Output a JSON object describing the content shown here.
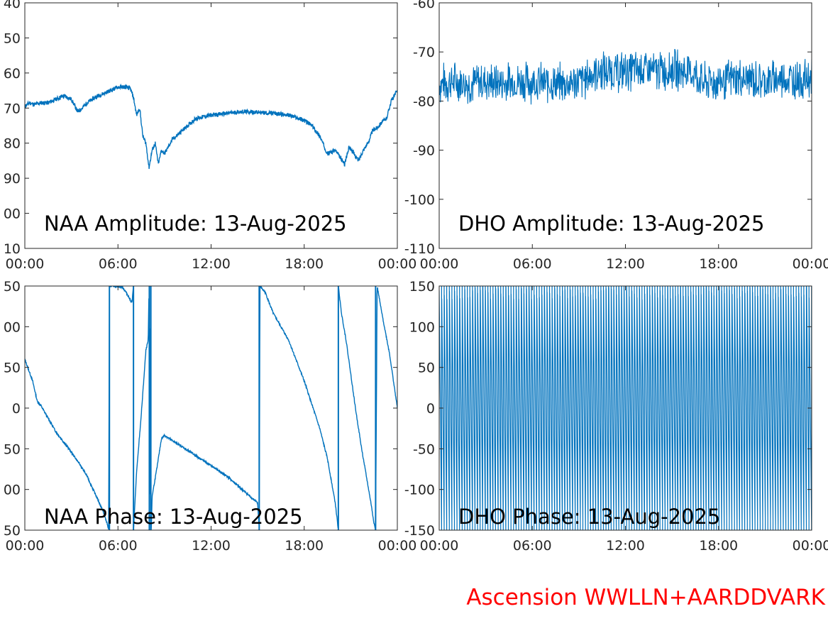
{
  "footer": "Ascension WWLLN+AARDDVARK",
  "colors": {
    "line": "#0072bd",
    "axis": "#262626",
    "footer": "#ff0000"
  },
  "chart_data": [
    {
      "type": "line",
      "title": "NAA Amplitude: 13-Aug-2025",
      "xlim": [
        "00:00",
        "24:00"
      ],
      "xticks": [
        "00:00",
        "06:00",
        "12:00",
        "18:00",
        "00:00"
      ],
      "ylim": [
        -110,
        -40
      ],
      "yticks": [
        "40",
        "50",
        "60",
        "70",
        "80",
        "90",
        "00",
        "10"
      ],
      "x_hours": [
        0,
        0.3,
        0.6,
        1,
        1.5,
        2,
        2.5,
        3,
        3.4,
        3.7,
        4,
        4.5,
        5,
        5.5,
        6,
        6.5,
        6.8,
        7,
        7.2,
        7.4,
        7.6,
        7.8,
        8,
        8.2,
        8.4,
        8.6,
        8.8,
        9,
        9.5,
        10,
        10.5,
        11,
        12,
        13,
        14,
        15,
        16,
        17,
        18,
        18.5,
        19,
        19.5,
        20,
        20.3,
        20.6,
        20.9,
        21.2,
        21.5,
        21.8,
        22.1,
        22.4,
        22.7,
        23,
        23.3,
        23.6,
        24
      ],
      "series": [
        {
          "values": [
            -69.5,
            -68.5,
            -69,
            -68.5,
            -68.5,
            -67.5,
            -66.5,
            -67.5,
            -71,
            -70,
            -68.5,
            -67,
            -66,
            -65,
            -64,
            -64,
            -64.5,
            -67,
            -72,
            -70,
            -78,
            -80,
            -87,
            -82,
            -80,
            -86,
            -82,
            -83,
            -79,
            -77,
            -75,
            -73,
            -72,
            -71.5,
            -71,
            -71.2,
            -71.5,
            -72,
            -73.5,
            -75,
            -78,
            -83,
            -82,
            -84,
            -86,
            -81,
            -83,
            -85,
            -82,
            -80,
            -76.5,
            -75.5,
            -74,
            -73,
            -68,
            -65
          ]
        }
      ]
    },
    {
      "type": "line",
      "title": "DHO Amplitude: 13-Aug-2025",
      "xlim": [
        "00:00",
        "24:00"
      ],
      "xticks": [
        "00:00",
        "06:00",
        "12:00",
        "18:00",
        "00:00"
      ],
      "ylim": [
        -110,
        -60
      ],
      "yticks": [
        "-60",
        "-70",
        "-80",
        "-90",
        "-100",
        "-110"
      ],
      "x_hours": [
        0,
        1,
        2,
        3,
        4,
        5,
        6,
        7,
        8,
        9,
        9.5,
        10,
        11,
        12,
        13,
        14,
        15,
        16,
        16.5,
        17,
        17.5,
        18,
        19,
        20,
        21,
        22,
        23,
        24
      ],
      "series": [
        {
          "values": [
            -76.5,
            -76,
            -76.5,
            -76,
            -76.5,
            -76,
            -76,
            -76.5,
            -76.5,
            -76,
            -75.5,
            -74,
            -74,
            -74,
            -73.5,
            -74,
            -73.5,
            -74,
            -74.5,
            -76.5,
            -76,
            -76,
            -75.5,
            -75.5,
            -76,
            -75.5,
            -75.5,
            -75.5
          ]
        }
      ],
      "band_halfwidth": 4
    },
    {
      "type": "line",
      "title": "NAA Phase: 13-Aug-2025",
      "xlim": [
        "00:00",
        "24:00"
      ],
      "xticks": [
        "00:00",
        "06:00",
        "12:00",
        "18:00",
        "00:00"
      ],
      "ylim": [
        -180,
        180
      ],
      "yticks": [
        "50",
        "00",
        "50",
        "0",
        "50",
        "00",
        "50"
      ],
      "x_hours": [
        0,
        0.5,
        0.8,
        1,
        1.5,
        2,
        2.5,
        3,
        3.3,
        3.6,
        4,
        4.5,
        5,
        5.3,
        5.4,
        5.45,
        5.5,
        5.6,
        6,
        6.3,
        6.6,
        6.9,
        7,
        7,
        7.2,
        7.5,
        7.8,
        7.95,
        8,
        8.05,
        8.1,
        8.12,
        8.15,
        8.2,
        8.5,
        8.8,
        9,
        9.3,
        10,
        11,
        12,
        13,
        14,
        14.5,
        15,
        15.05,
        15.1,
        15.15,
        15.5,
        16,
        17,
        18,
        19,
        19.5,
        20,
        20.2,
        20.2,
        20.4,
        20.7,
        21,
        21.3,
        21.7,
        22,
        22.3,
        22.5,
        22.6,
        22.7,
        23,
        23.5,
        24
      ],
      "series": [
        {
          "values": [
            72,
            40,
            10,
            5,
            -15,
            -35,
            -50,
            -65,
            -75,
            -85,
            -100,
            -125,
            -150,
            -170,
            -180,
            180,
            180,
            180,
            180,
            178,
            168,
            155,
            180,
            -180,
            -95,
            -10,
            85,
            100,
            180,
            -180,
            180,
            -180,
            -180,
            -130,
            -90,
            -45,
            -40,
            -45,
            -55,
            -70,
            -85,
            -100,
            -120,
            -130,
            -140,
            -160,
            -175,
            180,
            170,
            140,
            100,
            40,
            -30,
            -75,
            -140,
            -180,
            180,
            140,
            100,
            50,
            0,
            -60,
            -100,
            -140,
            -170,
            -180,
            180,
            140,
            80,
            0
          ]
        }
      ],
      "wrap_verticals": [
        5.45,
        7.0,
        8.02,
        8.12,
        15.1,
        20.2,
        22.6
      ]
    },
    {
      "type": "line",
      "title": "DHO Phase: 13-Aug-2025",
      "xlim": [
        "00:00",
        "24:00"
      ],
      "xticks": [
        "00:00",
        "06:00",
        "12:00",
        "18:00",
        "00:00"
      ],
      "ylim": [
        -180,
        180
      ],
      "yticks": [
        "150",
        "100",
        "50",
        "0",
        "-50",
        "-100",
        "-150"
      ],
      "series": [
        {
          "values": []
        }
      ],
      "wrap_cycles": 145,
      "fill_range": [
        -180,
        180
      ]
    }
  ]
}
